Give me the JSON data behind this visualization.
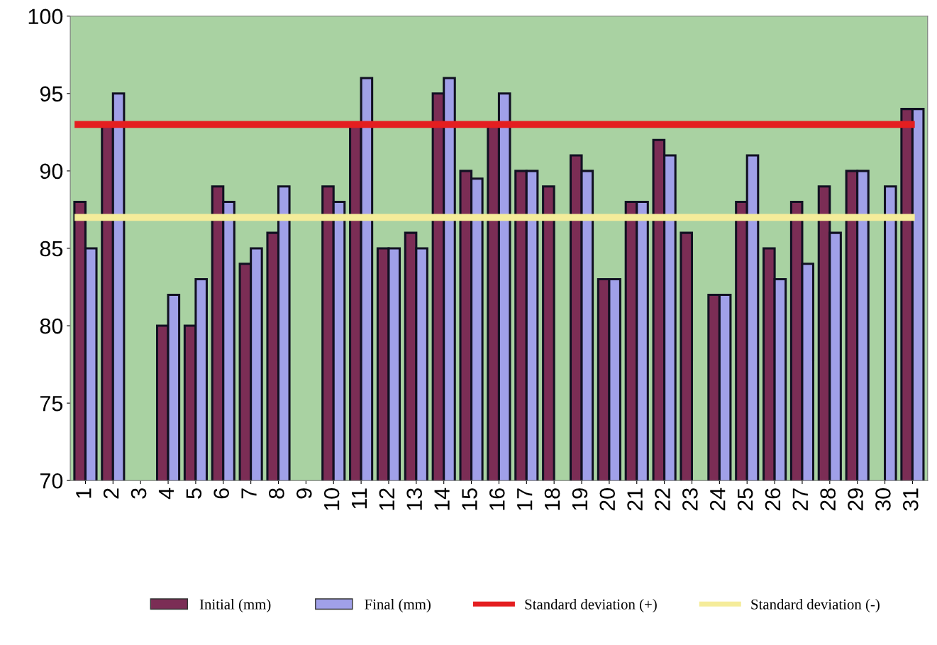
{
  "chart_data": {
    "type": "bar",
    "categories": [
      "1",
      "2",
      "3",
      "4",
      "5",
      "6",
      "7",
      "8",
      "9",
      "10",
      "11",
      "12",
      "13",
      "14",
      "15",
      "16",
      "17",
      "18",
      "19",
      "20",
      "21",
      "22",
      "23",
      "24",
      "25",
      "26",
      "27",
      "28",
      "29",
      "30",
      "31"
    ],
    "series": [
      {
        "name": "Initial (mm)",
        "color": "#7b2d55",
        "values": [
          88,
          93,
          null,
          80,
          80,
          89,
          84,
          86,
          null,
          89,
          93,
          85,
          86,
          95,
          90,
          93,
          90,
          89,
          91,
          83,
          88,
          92,
          86,
          82,
          88,
          85,
          88,
          89,
          90,
          null,
          94
        ]
      },
      {
        "name": "Final (mm)",
        "color": "#a0a0e8",
        "values": [
          85,
          95,
          null,
          82,
          83,
          88,
          85,
          89,
          null,
          88,
          96,
          85,
          85,
          96,
          89.5,
          95,
          90,
          null,
          90,
          83,
          88,
          91,
          null,
          82,
          91,
          83,
          84,
          86,
          90,
          89,
          94
        ]
      }
    ],
    "ylim": [
      70,
      100
    ],
    "yticks": [
      70,
      75,
      80,
      85,
      90,
      95,
      100
    ],
    "ref_lines": [
      {
        "axis": "y",
        "value": 93,
        "label": "Standard deviation (+)",
        "color": "#e41e20"
      },
      {
        "axis": "y",
        "value": 87,
        "label": "Standard deviation (-)",
        "color": "#f5ec9a"
      }
    ],
    "grid": false,
    "legend": "bottom"
  }
}
